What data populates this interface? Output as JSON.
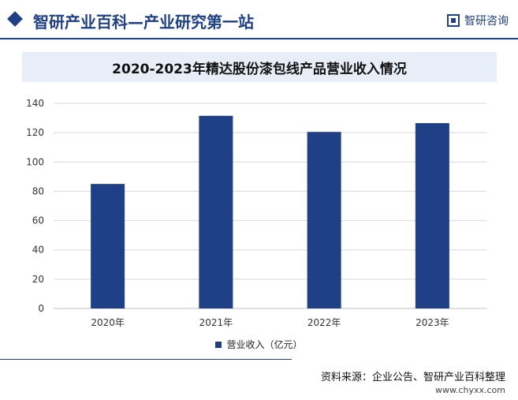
{
  "header": {
    "site_title": "智研产业百科—产业研究第一站",
    "logo_text": "智研咨询"
  },
  "footer": {
    "source": "资料来源：企业公告、智研产业百科整理",
    "url": "www.chyxx.com"
  },
  "colors": {
    "bar": "#1f3f86",
    "grid": "#d9d9d9"
  },
  "chart_data": {
    "type": "bar",
    "title": "2020-2023年精达股份漆包线产品营业收入情况",
    "categories": [
      "2020年",
      "2021年",
      "2022年",
      "2023年"
    ],
    "series": [
      {
        "name": "营业收入（亿元）",
        "values": [
          85.0,
          131.5,
          120.5,
          126.5
        ]
      }
    ],
    "ylim": [
      0,
      140
    ],
    "yticks": [
      0,
      20,
      40,
      60,
      80,
      100,
      120,
      140
    ],
    "grid": true,
    "legend": "bottom"
  }
}
